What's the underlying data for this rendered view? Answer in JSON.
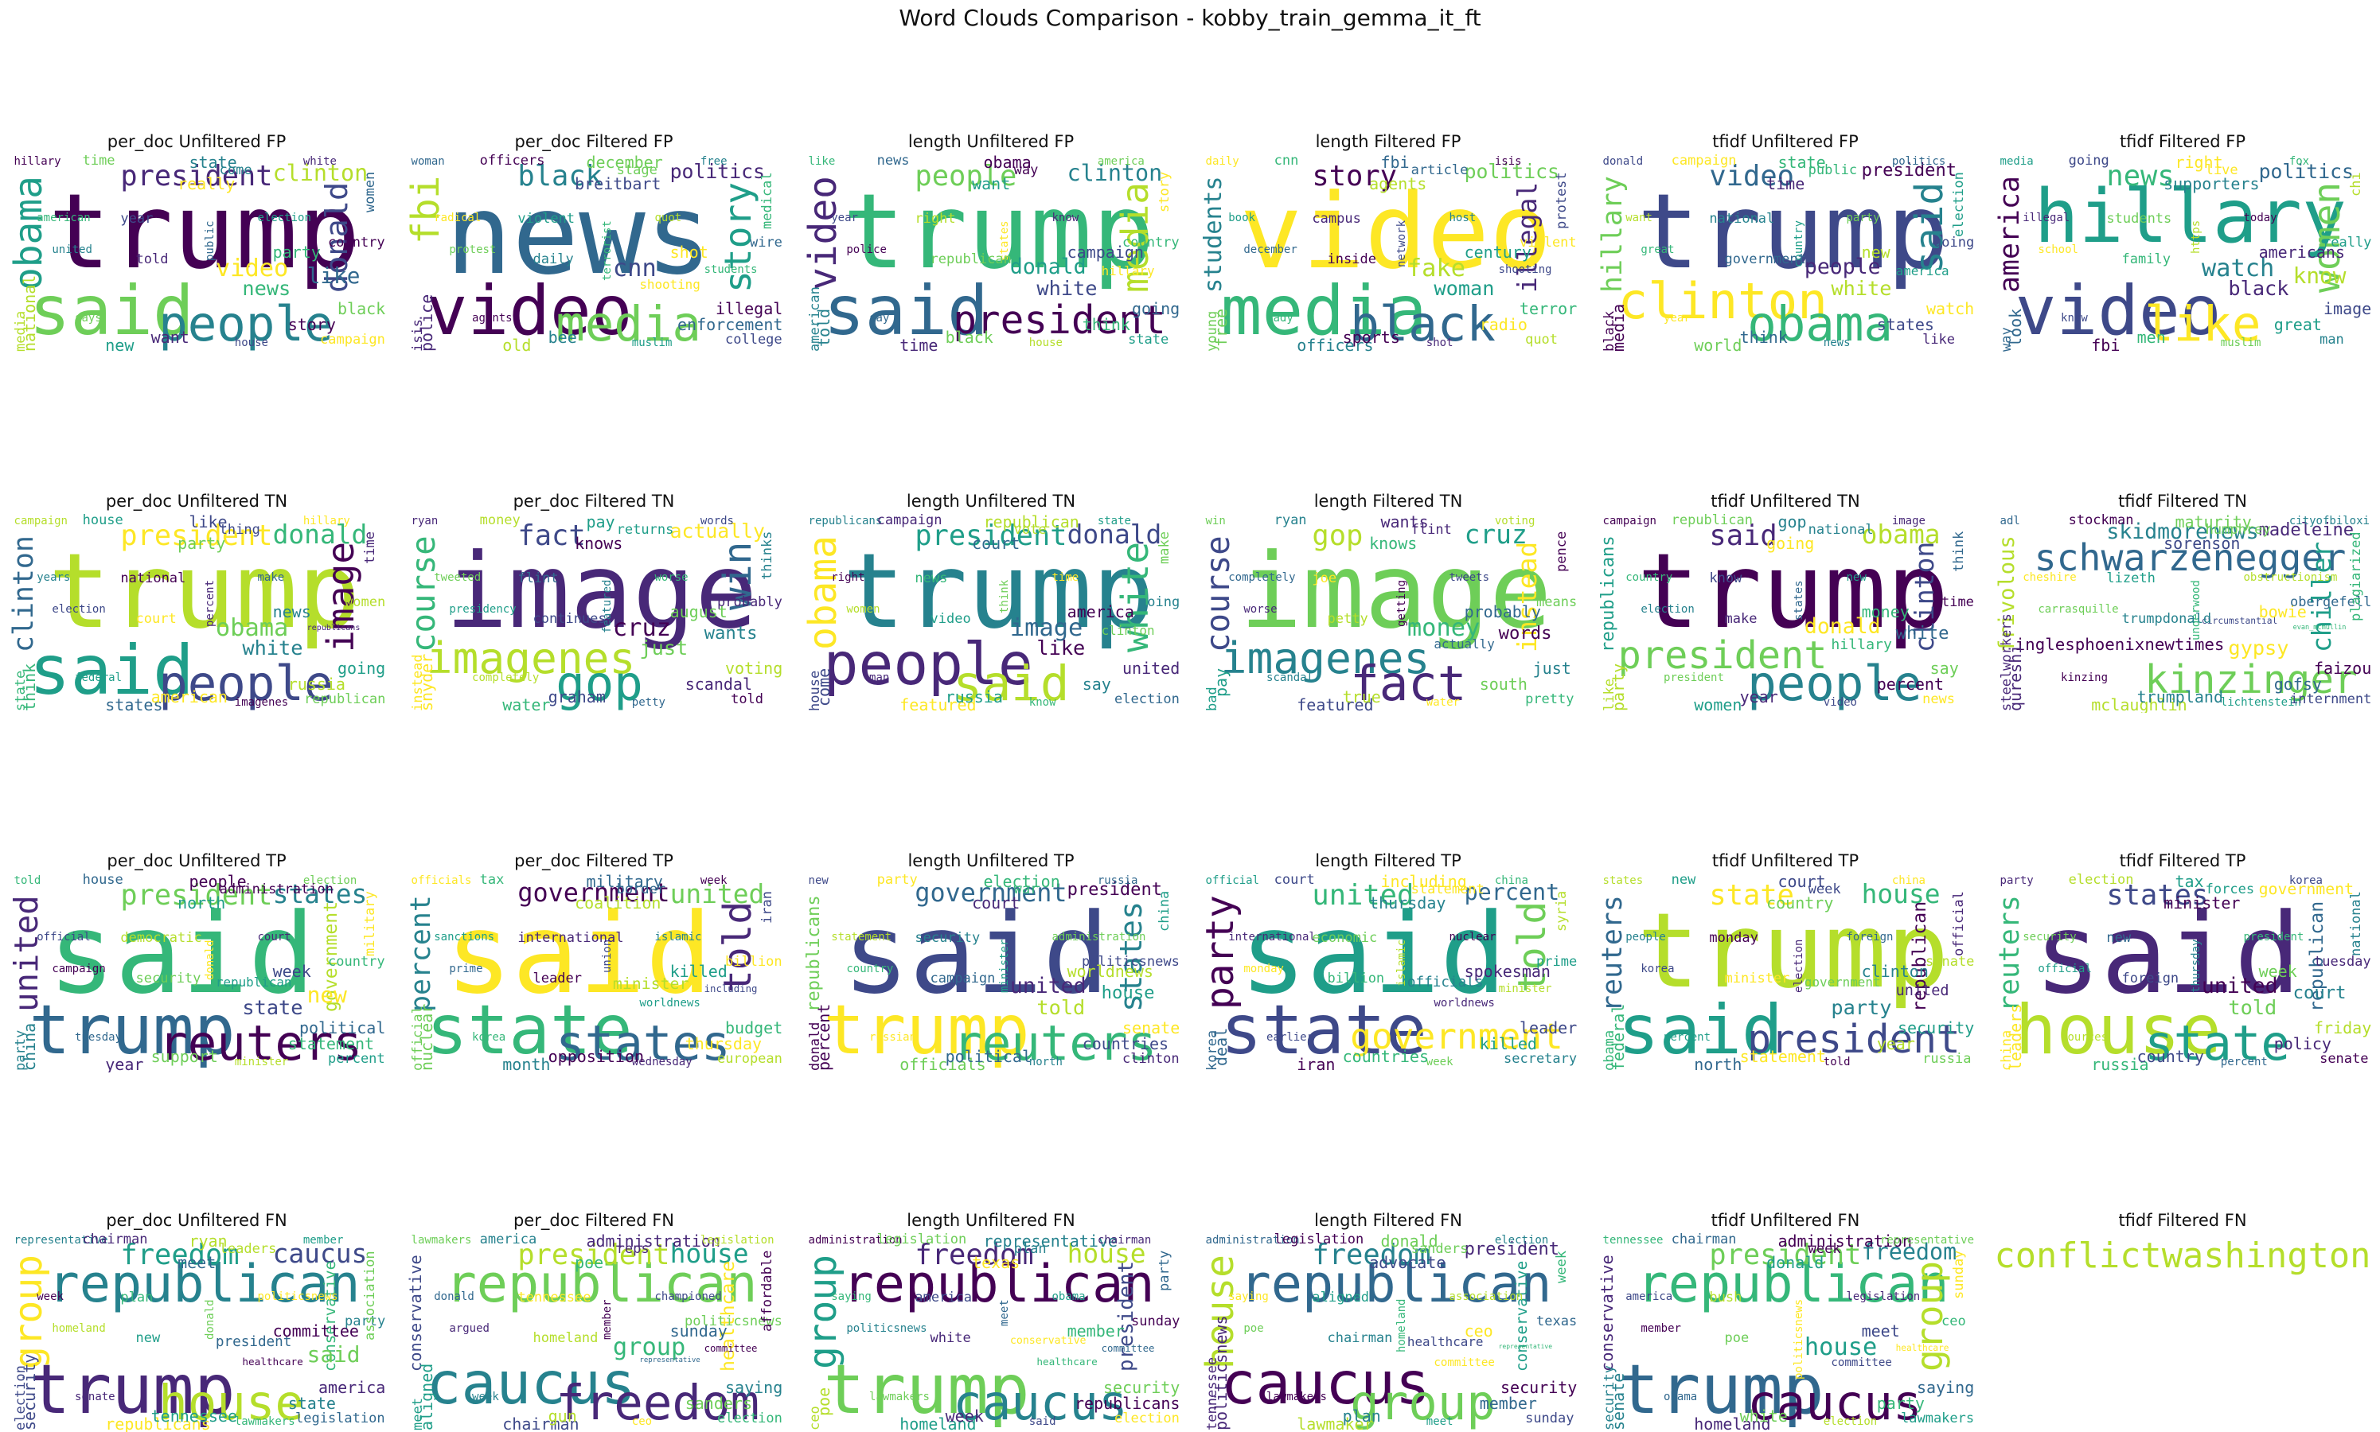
{
  "title": "Word Clouds Comparison - kobby_train_gemma_it_ft",
  "colormap": "viridis",
  "chart_data": [
    {
      "type": "wordcloud",
      "title": "per_doc Unfiltered FP",
      "words": [
        "trump",
        "said",
        "people",
        "president",
        "clinton",
        "obama",
        "donald",
        "video",
        "news",
        "like",
        "hillary",
        "time",
        "state",
        "white",
        "media",
        "new",
        "house",
        "campaign",
        "party",
        "public",
        "country",
        "black",
        "united",
        "told",
        "national",
        "election",
        "year",
        "really",
        "american",
        "women",
        "story",
        "says",
        "come",
        "want"
      ]
    },
    {
      "type": "wordcloud",
      "title": "per_doc Filtered FP",
      "words": [
        "news",
        "video",
        "media",
        "black",
        "politics",
        "fbi",
        "story",
        "cnn",
        "shooting",
        "students",
        "woman",
        "officers",
        "december",
        "free",
        "isis",
        "old",
        "muslim",
        "college",
        "shot",
        "terrorist",
        "wire",
        "illegal",
        "protest",
        "daily",
        "police",
        "quot",
        "violent",
        "breitbart",
        "radical",
        "medical",
        "enforcement",
        "agents",
        "stage",
        "bee"
      ]
    },
    {
      "type": "wordcloud",
      "title": "length Unfiltered FP",
      "words": [
        "trump",
        "said",
        "president",
        "people",
        "clinton",
        "video",
        "media",
        "donald",
        "white",
        "hillary",
        "like",
        "news",
        "obama",
        "america",
        "american",
        "time",
        "house",
        "state",
        "campaign",
        "states",
        "country",
        "going",
        "police",
        "republican",
        "told",
        "know",
        "right",
        "want",
        "year",
        "story",
        "think",
        "say",
        "way",
        "black"
      ]
    },
    {
      "type": "wordcloud",
      "title": "length Filtered FP",
      "words": [
        "video",
        "media",
        "black",
        "story",
        "politics",
        "students",
        "illegal",
        "fake",
        "woman",
        "shooting",
        "daily",
        "cnn",
        "fbi",
        "isis",
        "young",
        "officers",
        "shot",
        "quot",
        "century",
        "network",
        "violent",
        "terror",
        "december",
        "inside",
        "free",
        "host",
        "campus",
        "agents",
        "book",
        "protest",
        "radio",
        "lady",
        "article",
        "sports"
      ]
    },
    {
      "type": "wordcloud",
      "title": "tfidf Unfiltered FP",
      "words": [
        "trump",
        "clinton",
        "obama",
        "video",
        "president",
        "hillary",
        "said",
        "people",
        "white",
        "america",
        "donald",
        "campaign",
        "state",
        "politics",
        "black",
        "world",
        "news",
        "like",
        "new",
        "country",
        "going",
        "watch",
        "great",
        "government",
        "media",
        "party",
        "national",
        "time",
        "want",
        "election",
        "states",
        "year",
        "public",
        "think"
      ]
    },
    {
      "type": "wordcloud",
      "title": "tfidf Filtered FP",
      "words": [
        "hillary",
        "video",
        "like",
        "news",
        "politics",
        "america",
        "women",
        "watch",
        "black",
        "know",
        "media",
        "going",
        "right",
        "fox",
        "way",
        "fbi",
        "muslim",
        "man",
        "americans",
        "https",
        "really",
        "image",
        "school",
        "family",
        "look",
        "today",
        "students",
        "supporters",
        "illegal",
        "chi",
        "great",
        "know",
        "live",
        "men"
      ]
    },
    {
      "type": "wordcloud",
      "title": "per_doc Unfiltered TN",
      "words": [
        "trump",
        "said",
        "people",
        "president",
        "donald",
        "clinton",
        "image",
        "obama",
        "white",
        "republicans",
        "campaign",
        "house",
        "like",
        "hillary",
        "state",
        "states",
        "imagenes",
        "republican",
        "news",
        "percent",
        "women",
        "going",
        "election",
        "court",
        "think",
        "make",
        "national",
        "party",
        "years",
        "time",
        "russia",
        "federal",
        "thing",
        "american"
      ]
    },
    {
      "type": "wordcloud",
      "title": "per_doc Filtered TN",
      "words": [
        "image",
        "imagenes",
        "gop",
        "fact",
        "actually",
        "course",
        "win",
        "cruz",
        "just",
        "wants",
        "ryan",
        "money",
        "pay",
        "words",
        "instead",
        "water",
        "petty",
        "told",
        "august",
        "featured",
        "probably",
        "voting",
        "presidency",
        "continues",
        "snyder",
        "worse",
        "flint",
        "knows",
        "tweeted",
        "thinks",
        "scandal",
        "completely",
        "returns",
        "graham"
      ]
    },
    {
      "type": "wordcloud",
      "title": "length Unfiltered TN",
      "words": [
        "trump",
        "people",
        "said",
        "president",
        "donald",
        "obama",
        "white",
        "image",
        "like",
        "clinton",
        "republicans",
        "campaign",
        "republican",
        "state",
        "house",
        "featured",
        "know",
        "election",
        "america",
        "think",
        "going",
        "united",
        "women",
        "video",
        "come",
        "time",
        "news",
        "court",
        "right",
        "make",
        "say",
        "man",
        "vote",
        "russia"
      ]
    },
    {
      "type": "wordcloud",
      "title": "length Filtered TN",
      "words": [
        "image",
        "imagenes",
        "fact",
        "gop",
        "cruz",
        "course",
        "instead",
        "money",
        "actually",
        "words",
        "win",
        "ryan",
        "wants",
        "voting",
        "bad",
        "featured",
        "water",
        "pretty",
        "probably",
        "getting",
        "means",
        "just",
        "worse",
        "petty",
        "pay",
        "tweets",
        "joe",
        "knows",
        "completely",
        "pence",
        "south",
        "scandal",
        "flint",
        "true"
      ]
    },
    {
      "type": "wordcloud",
      "title": "tfidf Unfiltered TN",
      "words": [
        "trump",
        "president",
        "people",
        "said",
        "obama",
        "republicans",
        "clinton",
        "donald",
        "hillary",
        "white",
        "campaign",
        "republican",
        "gop",
        "image",
        "like",
        "women",
        "video",
        "news",
        "money",
        "states",
        "time",
        "say",
        "election",
        "make",
        "party",
        "new",
        "know",
        "going",
        "country",
        "think",
        "percent",
        "president",
        "national",
        "year"
      ]
    },
    {
      "type": "wordcloud",
      "title": "tfidf Filtered TN",
      "words": [
        "schwarzenegger",
        "inglesphoenixnewtimes",
        "kinzinger",
        "skidmorenews",
        "madeleine",
        "frivolous",
        "chiller",
        "circumstantial",
        "gypsy",
        "evan_mcmullin",
        "adl",
        "stockman",
        "maturity",
        "cityofbiloxi",
        "steelworkers",
        "mclaughlin",
        "lichtenstein",
        "internment",
        "bowie",
        "underwood",
        "obergefell",
        "faizou",
        "carrasquille",
        "trumpdonald",
        "qureshi",
        "obstructionism",
        "lizeth",
        "sorenson",
        "cheshire",
        "plagiarized",
        "gofsy",
        "kinzing",
        "humphrey",
        "trumpland"
      ]
    },
    {
      "type": "wordcloud",
      "title": "per_doc Unfiltered TP",
      "words": [
        "said",
        "trump",
        "reuters",
        "president",
        "states",
        "united",
        "government",
        "republican",
        "state",
        "new",
        "told",
        "house",
        "people",
        "election",
        "party",
        "year",
        "minister",
        "percent",
        "week",
        "donald",
        "country",
        "political",
        "campaign",
        "security",
        "china",
        "court",
        "democratic",
        "north",
        "official",
        "military",
        "statement",
        "tuesday",
        "administration",
        "support"
      ]
    },
    {
      "type": "wordcloud",
      "title": "per_doc Filtered TP",
      "words": [
        "said",
        "state",
        "states",
        "government",
        "united",
        "percent",
        "told",
        "minister",
        "worldnews",
        "including",
        "officials",
        "tax",
        "military",
        "week",
        "official",
        "month",
        "wednesday",
        "european",
        "killed",
        "union",
        "billion",
        "budget",
        "prime",
        "leader",
        "nuclear",
        "islamic",
        "international",
        "coalition",
        "sanctions",
        "iran",
        "thursday",
        "korea",
        "border",
        "opposition"
      ]
    },
    {
      "type": "wordcloud",
      "title": "length Unfiltered TP",
      "words": [
        "said",
        "trump",
        "reuters",
        "government",
        "president",
        "republicans",
        "states",
        "united",
        "told",
        "house",
        "new",
        "party",
        "election",
        "russia",
        "donald",
        "officials",
        "north",
        "clinton",
        "worldnews",
        "minister",
        "politicsnews",
        "senate",
        "country",
        "campaign",
        "percent",
        "administration",
        "security",
        "court",
        "statement",
        "china",
        "countries",
        "russian",
        "war",
        "political"
      ]
    },
    {
      "type": "wordcloud",
      "title": "length Filtered TP",
      "words": [
        "said",
        "state",
        "government",
        "united",
        "percent",
        "party",
        "told",
        "officials",
        "worldnews",
        "minister",
        "official",
        "court",
        "including",
        "china",
        "korea",
        "iran",
        "week",
        "secretary",
        "spokesman",
        "islamic",
        "prime",
        "leader",
        "monday",
        "billion",
        "deal",
        "nuclear",
        "economic",
        "thursday",
        "international",
        "syria",
        "killed",
        "earlier",
        "statement",
        "countries"
      ]
    },
    {
      "type": "wordcloud",
      "title": "tfidf Unfiltered TP",
      "words": [
        "trump",
        "said",
        "president",
        "state",
        "house",
        "reuters",
        "republican",
        "government",
        "party",
        "united",
        "states",
        "new",
        "court",
        "china",
        "obama",
        "north",
        "told",
        "russia",
        "clinton",
        "election",
        "senate",
        "security",
        "korea",
        "minister",
        "federal",
        "foreign",
        "monday",
        "country",
        "people",
        "official",
        "year",
        "percent",
        "week",
        "statement"
      ]
    },
    {
      "type": "wordcloud",
      "title": "tfidf Filtered TP",
      "words": [
        "said",
        "house",
        "state",
        "states",
        "government",
        "reuters",
        "republican",
        "united",
        "told",
        "court",
        "party",
        "election",
        "tax",
        "korea",
        "china",
        "russia",
        "percent",
        "senate",
        "week",
        "thursday",
        "tuesday",
        "friday",
        "official",
        "foreign",
        "leaders",
        "president",
        "new",
        "minister",
        "security",
        "national",
        "policy",
        "sources",
        "forces",
        "country"
      ]
    },
    {
      "type": "wordcloud",
      "title": "per_doc Unfiltered FN",
      "words": [
        "republican",
        "trump",
        "house",
        "freedom",
        "caucus",
        "group",
        "conservative",
        "president",
        "healthcare",
        "said",
        "representative",
        "chairman",
        "ryan",
        "member",
        "election",
        "republicans",
        "lawmakers",
        "legislation",
        "committee",
        "donald",
        "party",
        "america",
        "homeland",
        "new",
        "security",
        "politicsnews",
        "plan",
        "meet",
        "week",
        "association",
        "state",
        "senate",
        "leaders",
        "tennessee"
      ]
    },
    {
      "type": "wordcloud",
      "title": "per_doc Filtered FN",
      "words": [
        "republican",
        "caucus",
        "freedom",
        "president",
        "house",
        "conservative",
        "healthcare",
        "group",
        "representative",
        "committee",
        "lawmakers",
        "america",
        "administration",
        "legislation",
        "meet",
        "chairman",
        "ceo",
        "election",
        "sunday",
        "member",
        "politicsnews",
        "saying",
        "argued",
        "homeland",
        "aligned",
        "championed",
        "tennessee",
        "poe",
        "donald",
        "affordable",
        "sanders",
        "week",
        "reps",
        "gun"
      ]
    },
    {
      "type": "wordcloud",
      "title": "length Unfiltered FN",
      "words": [
        "republican",
        "trump",
        "caucus",
        "freedom",
        "house",
        "group",
        "president",
        "conservative",
        "healthcare",
        "committee",
        "administration",
        "legislation",
        "representative",
        "chairman",
        "ceo",
        "homeland",
        "said",
        "election",
        "member",
        "meet",
        "sunday",
        "security",
        "politicsnews",
        "white",
        "poe",
        "obama",
        "america",
        "texas",
        "saying",
        "party",
        "republicans",
        "lawmakers",
        "plan",
        "week"
      ]
    },
    {
      "type": "wordcloud",
      "title": "length Filtered FN",
      "words": [
        "republican",
        "caucus",
        "group",
        "freedom",
        "president",
        "house",
        "conservative",
        "healthcare",
        "committee",
        "representative",
        "administration",
        "legislation",
        "donald",
        "election",
        "tennessee",
        "lawmaker",
        "meet",
        "sunday",
        "ceo",
        "homeland",
        "texas",
        "security",
        "poe",
        "chairman",
        "politicsnews",
        "association",
        "aligned",
        "advocate",
        "saying",
        "week",
        "member",
        "lawmakers",
        "sanders",
        "plan"
      ]
    },
    {
      "type": "wordcloud",
      "title": "tfidf Unfiltered FN",
      "words": [
        "republican",
        "trump",
        "caucus",
        "president",
        "freedom",
        "conservative",
        "group",
        "house",
        "committee",
        "healthcare",
        "tennessee",
        "chairman",
        "administration",
        "representative",
        "security",
        "homeland",
        "election",
        "lawmakers",
        "meet",
        "politicsnews",
        "ceo",
        "saying",
        "member",
        "poe",
        "senate",
        "legislation",
        "bush",
        "donald",
        "america",
        "sunday",
        "party",
        "obama",
        "week",
        "white"
      ]
    },
    {
      "type": "wordcloud",
      "title": "tfidf Filtered FN",
      "words": [
        "conflictwashington"
      ]
    }
  ]
}
